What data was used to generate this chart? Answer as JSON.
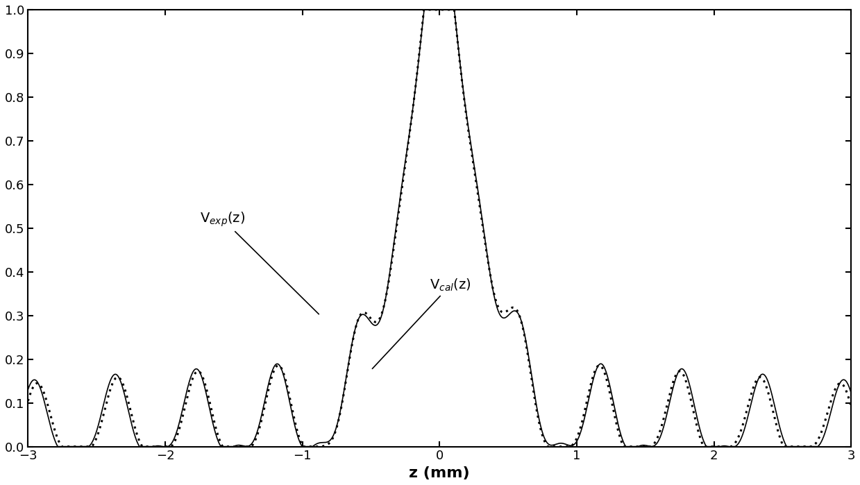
{
  "xlabel": "z (mm)",
  "xlim": [
    -3,
    3
  ],
  "ylim": [
    0,
    1.0
  ],
  "yticks": [
    0.0,
    0.1,
    0.2,
    0.3,
    0.4,
    0.5,
    0.6,
    0.7,
    0.8,
    0.9,
    1.0
  ],
  "xticks": [
    -3,
    -2,
    -1,
    0,
    1,
    2,
    3
  ],
  "ann_exp_text": "V$_{exp}$(z)",
  "ann_cal_text": "V$_{cal}$(z)",
  "bg_color": "#ffffff",
  "label_fontsize": 16
}
